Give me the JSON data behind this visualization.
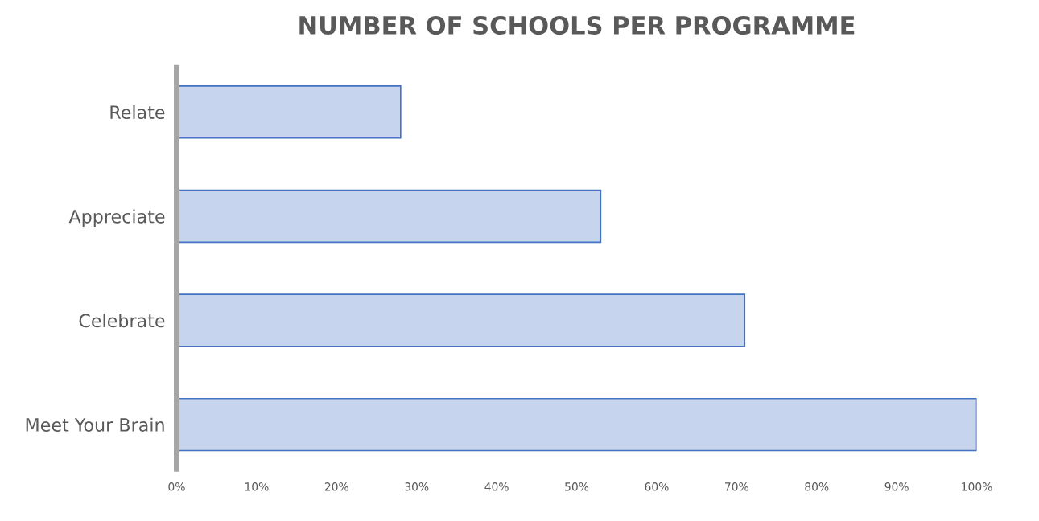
{
  "chart_data": {
    "type": "bar",
    "orientation": "horizontal",
    "title": "NUMBER OF SCHOOLS PER PROGRAMME",
    "categories": [
      "Relate",
      "Appreciate",
      "Celebrate",
      "Meet Your Brain"
    ],
    "values": [
      28,
      53,
      71,
      100
    ],
    "color": "#4472c4",
    "xlim": [
      0,
      100
    ],
    "xticks": [
      {
        "value": 0,
        "label": "0%"
      },
      {
        "value": 10,
        "label": "10%"
      },
      {
        "value": 20,
        "label": "20%"
      },
      {
        "value": 30,
        "label": "30%"
      },
      {
        "value": 40,
        "label": "40%"
      },
      {
        "value": 50,
        "label": "50%"
      },
      {
        "value": 60,
        "label": "60%"
      },
      {
        "value": 70,
        "label": "70%"
      },
      {
        "value": 80,
        "label": "80%"
      },
      {
        "value": 90,
        "label": "90%"
      },
      {
        "value": 100,
        "label": "100%"
      }
    ],
    "grid": false
  }
}
